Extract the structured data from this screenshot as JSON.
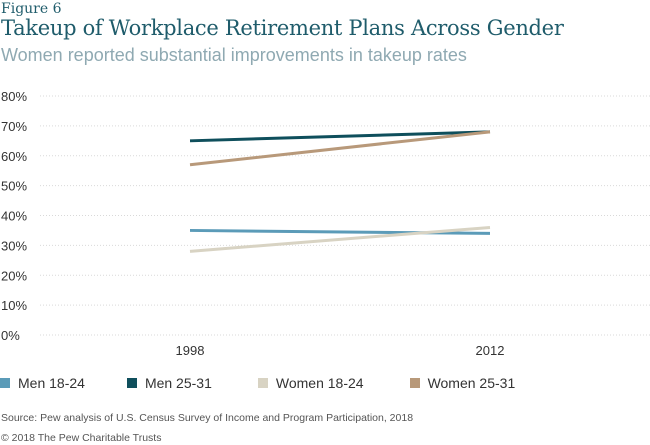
{
  "figure_label": "Figure 6",
  "title": "Takeup of Workplace Retirement Plans Across Gender",
  "subtitle": "Women reported substantial improvements in takeup rates",
  "source": "Source: Pew analysis of U.S. Census Survey of Income and Program Participation, 2018",
  "copyright": "© 2018 The Pew Charitable Trusts",
  "chart_data": {
    "type": "line",
    "x": [
      "1998",
      "2012"
    ],
    "ylim": [
      0,
      80
    ],
    "yticks": [
      0,
      10,
      20,
      30,
      40,
      50,
      60,
      70,
      80
    ],
    "ytick_labels": [
      "0%",
      "10%",
      "20%",
      "30%",
      "40%",
      "50%",
      "60%",
      "70%",
      "80%"
    ],
    "grid": true,
    "legend_position": "bottom",
    "series": [
      {
        "name": "Men 18-24",
        "values": [
          35,
          34
        ],
        "color": "#5b9bb8"
      },
      {
        "name": "Men 25-31",
        "values": [
          65,
          68
        ],
        "color": "#0f4f5c"
      },
      {
        "name": "Women 18-24",
        "values": [
          28,
          36
        ],
        "color": "#d8d3c3"
      },
      {
        "name": "Women 25-31",
        "values": [
          57,
          68
        ],
        "color": "#b8997a"
      }
    ]
  }
}
